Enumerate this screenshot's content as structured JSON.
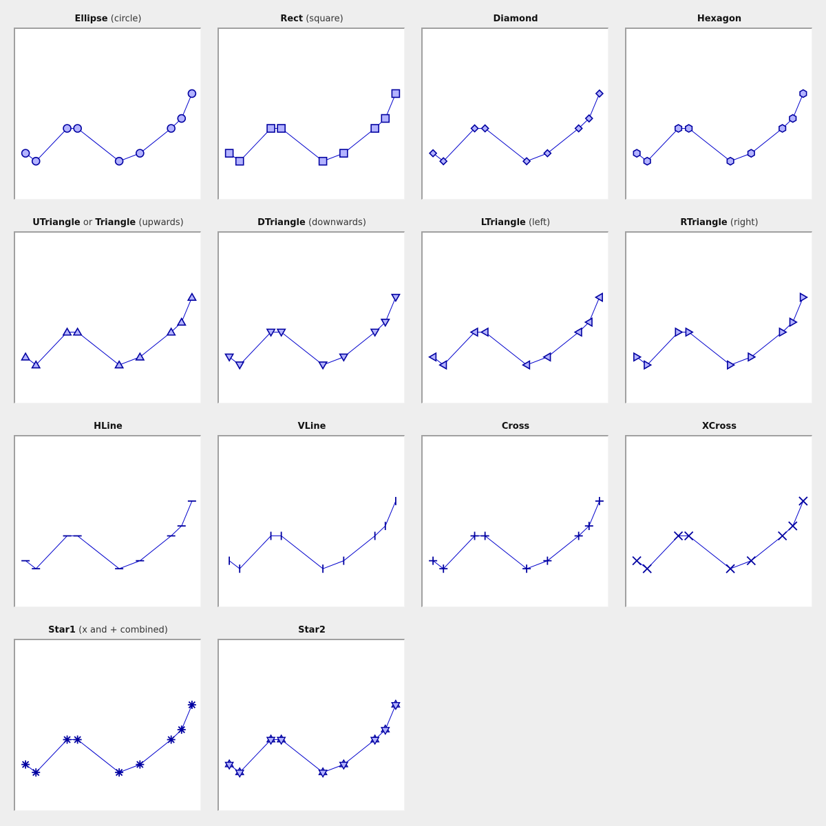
{
  "chart_data": [
    {
      "type": "line",
      "title_main": "Ellipse",
      "title_sub": "(circle)",
      "marker": "circle",
      "x": [
        0,
        1,
        4,
        5,
        9,
        11,
        14,
        15,
        16
      ],
      "values": [
        1.5,
        0.7,
        4,
        4,
        0.7,
        1.5,
        4,
        5,
        7.5
      ]
    },
    {
      "type": "line",
      "title_main": "Rect",
      "title_sub": "(square)",
      "marker": "square",
      "x": [
        0,
        1,
        4,
        5,
        9,
        11,
        14,
        15,
        16
      ],
      "values": [
        1.5,
        0.7,
        4,
        4,
        0.7,
        1.5,
        4,
        5,
        7.5
      ]
    },
    {
      "type": "line",
      "title_main": "Diamond",
      "title_sub": "",
      "marker": "diamond",
      "x": [
        0,
        1,
        4,
        5,
        9,
        11,
        14,
        15,
        16
      ],
      "values": [
        1.5,
        0.7,
        4,
        4,
        0.7,
        1.5,
        4,
        5,
        7.5
      ]
    },
    {
      "type": "line",
      "title_main": "Hexagon",
      "title_sub": "",
      "marker": "hexagon",
      "x": [
        0,
        1,
        4,
        5,
        9,
        11,
        14,
        15,
        16
      ],
      "values": [
        1.5,
        0.7,
        4,
        4,
        0.7,
        1.5,
        4,
        5,
        7.5
      ]
    },
    {
      "type": "line",
      "title_main": "UTriangle",
      "title_mid": "or",
      "title_main2": "Triangle",
      "title_sub": "(upwards)",
      "marker": "utriangle",
      "x": [
        0,
        1,
        4,
        5,
        9,
        11,
        14,
        15,
        16
      ],
      "values": [
        1.5,
        0.7,
        4,
        4,
        0.7,
        1.5,
        4,
        5,
        7.5
      ]
    },
    {
      "type": "line",
      "title_main": "DTriangle",
      "title_sub": "(downwards)",
      "marker": "dtriangle",
      "x": [
        0,
        1,
        4,
        5,
        9,
        11,
        14,
        15,
        16
      ],
      "values": [
        1.5,
        0.7,
        4,
        4,
        0.7,
        1.5,
        4,
        5,
        7.5
      ]
    },
    {
      "type": "line",
      "title_main": "LTriangle",
      "title_sub": "(left)",
      "marker": "ltriangle",
      "x": [
        0,
        1,
        4,
        5,
        9,
        11,
        14,
        15,
        16
      ],
      "values": [
        1.5,
        0.7,
        4,
        4,
        0.7,
        1.5,
        4,
        5,
        7.5
      ]
    },
    {
      "type": "line",
      "title_main": "RTriangle",
      "title_sub": "(right)",
      "marker": "rtriangle",
      "x": [
        0,
        1,
        4,
        5,
        9,
        11,
        14,
        15,
        16
      ],
      "values": [
        1.5,
        0.7,
        4,
        4,
        0.7,
        1.5,
        4,
        5,
        7.5
      ]
    },
    {
      "type": "line",
      "title_main": "HLine",
      "title_sub": "",
      "marker": "hline",
      "x": [
        0,
        1,
        4,
        5,
        9,
        11,
        14,
        15,
        16
      ],
      "values": [
        1.5,
        0.7,
        4,
        4,
        0.7,
        1.5,
        4,
        5,
        7.5
      ]
    },
    {
      "type": "line",
      "title_main": "VLine",
      "title_sub": "",
      "marker": "vline",
      "x": [
        0,
        1,
        4,
        5,
        9,
        11,
        14,
        15,
        16
      ],
      "values": [
        1.5,
        0.7,
        4,
        4,
        0.7,
        1.5,
        4,
        5,
        7.5
      ]
    },
    {
      "type": "line",
      "title_main": "Cross",
      "title_sub": "",
      "marker": "cross",
      "x": [
        0,
        1,
        4,
        5,
        9,
        11,
        14,
        15,
        16
      ],
      "values": [
        1.5,
        0.7,
        4,
        4,
        0.7,
        1.5,
        4,
        5,
        7.5
      ]
    },
    {
      "type": "line",
      "title_main": "XCross",
      "title_sub": "",
      "marker": "xcross",
      "x": [
        0,
        1,
        4,
        5,
        9,
        11,
        14,
        15,
        16
      ],
      "values": [
        1.5,
        0.7,
        4,
        4,
        0.7,
        1.5,
        4,
        5,
        7.5
      ]
    },
    {
      "type": "line",
      "title_main": "Star1",
      "title_sub": "(x and + combined)",
      "marker": "star1",
      "x": [
        0,
        1,
        4,
        5,
        9,
        11,
        14,
        15,
        16
      ],
      "values": [
        1.5,
        0.7,
        4,
        4,
        0.7,
        1.5,
        4,
        5,
        7.5
      ]
    },
    {
      "type": "line",
      "title_main": "Star2",
      "title_sub": "",
      "marker": "star2",
      "x": [
        0,
        1,
        4,
        5,
        9,
        11,
        14,
        15,
        16
      ],
      "values": [
        1.5,
        0.7,
        4,
        4,
        0.7,
        1.5,
        4,
        5,
        7.5
      ]
    }
  ],
  "axes": {
    "xlim": [
      -1,
      17
    ],
    "ylim": [
      -3.3,
      14
    ],
    "grid": false
  },
  "colors": {
    "line": "#0000cc",
    "marker_fill": "#b3b3ff",
    "marker_edge": "#0000a0",
    "background": "#eeeeee",
    "plot_bg": "#ffffff",
    "frame": "#a0a0a0"
  }
}
